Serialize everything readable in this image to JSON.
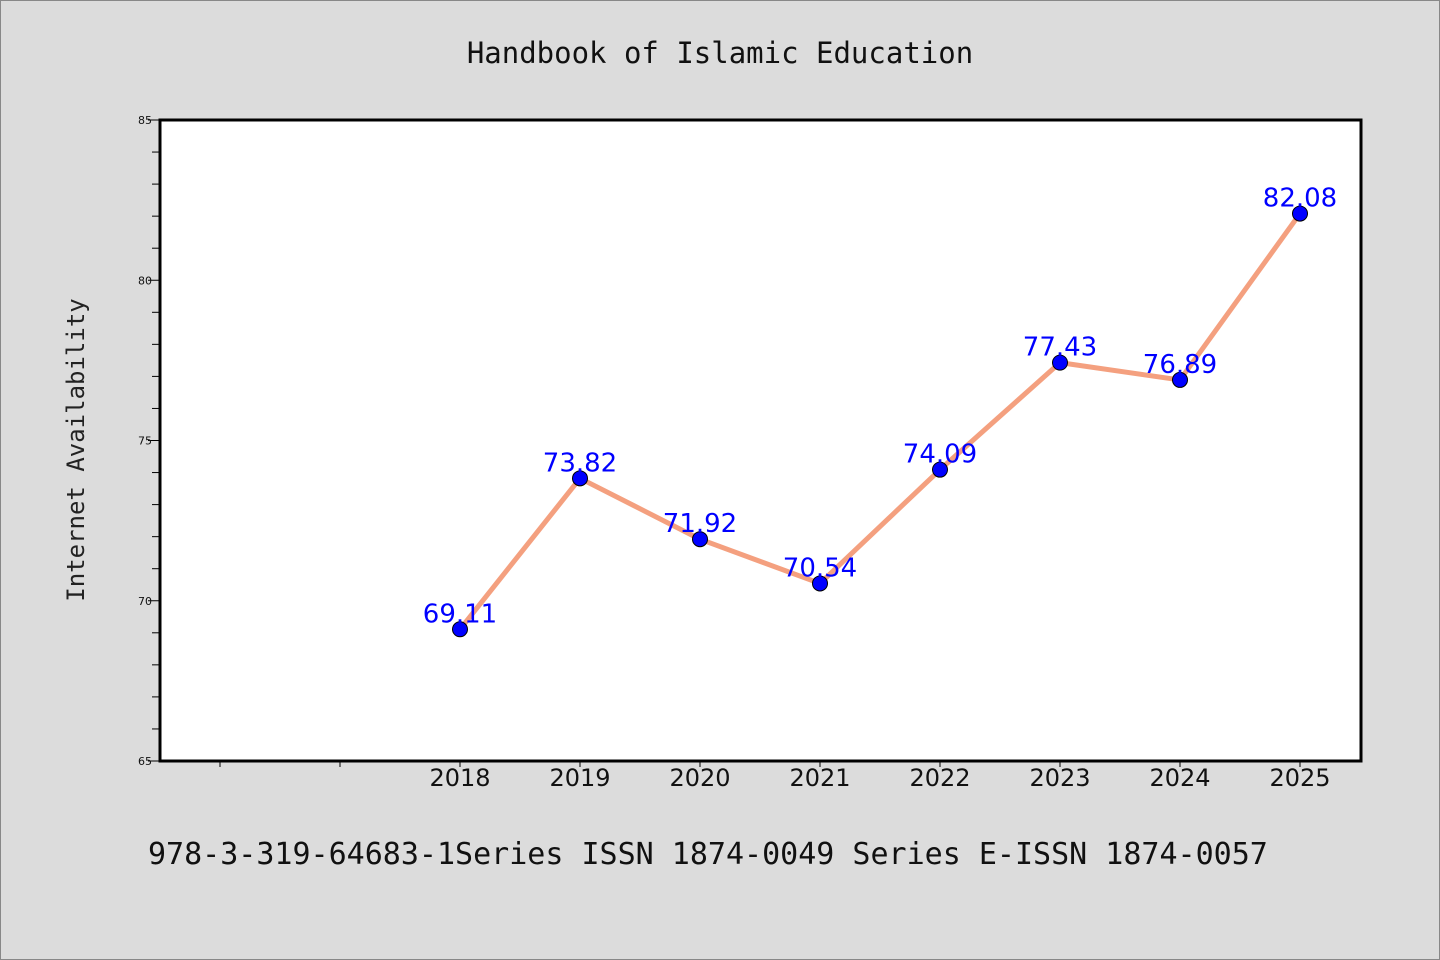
{
  "chart_data": {
    "type": "line",
    "title": "Handbook of Islamic Education",
    "xlabel": "",
    "ylabel": "Internet Availability",
    "categories": [
      "2018",
      "2019",
      "2020",
      "2021",
      "2022",
      "2023",
      "2024",
      "2025"
    ],
    "series": [
      {
        "values": [
          69.11,
          73.82,
          71.92,
          70.54,
          74.09,
          77.43,
          76.89,
          82.08
        ],
        "value_labels": [
          "69.11",
          "73.82",
          "71.92",
          "70.54",
          "74.09",
          "77.43",
          "76.89",
          "82.08"
        ]
      }
    ],
    "ylim": [
      65,
      85
    ],
    "xlim_categories": [
      "",
      "",
      "2018",
      "2019",
      "2020",
      "2021",
      "2022",
      "2023",
      "2024",
      "2025"
    ],
    "yticks": [
      "65",
      "70",
      "75",
      "80",
      "85"
    ],
    "grid": false,
    "legend": "none",
    "colors": {
      "line": "#f4a07f",
      "marker": "#0000ff",
      "label": "#0000ff",
      "background": "#dcdcdc",
      "plot_background": "#ffffff"
    }
  },
  "footer": {
    "text": "978-3-319-64683-1Series ISSN 1874-0049 Series E-ISSN 1874-0057"
  }
}
